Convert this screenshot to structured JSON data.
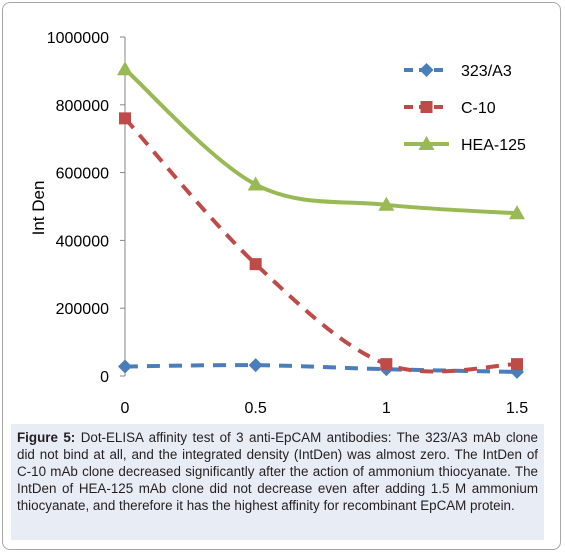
{
  "chart_data": {
    "type": "line",
    "x": [
      0,
      0.5,
      1,
      1.5
    ],
    "x_tick_labels": [
      "0",
      "0.5",
      "1",
      "1.5"
    ],
    "xlim": [
      0,
      1.5
    ],
    "ylim": [
      0,
      1000000
    ],
    "y_tick_labels": [
      "0",
      "200000",
      "400000",
      "600000",
      "800000",
      "1000000"
    ],
    "y_tick_values": [
      0,
      200000,
      400000,
      600000,
      800000,
      1000000
    ],
    "ylabel": "Int Den",
    "xlabel": "",
    "title": "",
    "grid": false,
    "legend_position": "top-right",
    "smooth": true,
    "series": [
      {
        "name": "323/A3",
        "values": [
          28000,
          32000,
          20000,
          12000
        ],
        "color": "#4a7ebb",
        "marker": "diamond",
        "dash": "dashed"
      },
      {
        "name": "C-10",
        "values": [
          760000,
          330000,
          35000,
          35000
        ],
        "color": "#be4b48",
        "marker": "square",
        "dash": "dashed"
      },
      {
        "name": "HEA-125",
        "values": [
          905000,
          565000,
          505000,
          480000
        ],
        "color": "#98b954",
        "marker": "triangle",
        "dash": "solid"
      }
    ]
  },
  "caption": {
    "label": "Figure 5:",
    "text": "Dot-ELISA affinity test of 3 anti-EpCAM antibodies: The 323/A3 mAb clone did not bind at all, and the integrated density (IntDen) was almost zero. The IntDen of C-10 mAb clone decreased significantly after the action of ammonium thiocyanate. The IntDen of HEA-125 mAb clone did not decrease even after adding 1.5 M ammonium thiocyanate, and therefore it has the highest affinity for recombinant EpCAM protein."
  }
}
